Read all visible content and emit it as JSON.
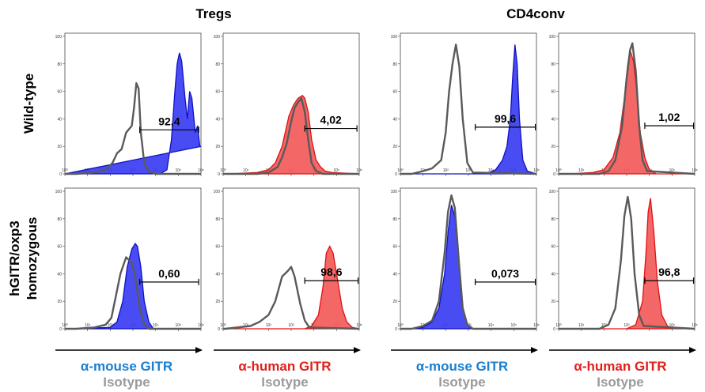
{
  "header": {
    "tregs": "Tregs",
    "cd4conv": "CD4conv"
  },
  "rows": [
    "Wild-type",
    "hGITR/oxp3 homozygous"
  ],
  "row_lines": [
    [
      "Wild-type"
    ],
    [
      "hGITR/oxp3",
      "homozygous"
    ]
  ],
  "y_ticks": [
    "0",
    "20",
    "40",
    "60",
    "80",
    "100"
  ],
  "x_ticks": [
    "10⁰",
    "10¹",
    "10²",
    "10³",
    "10⁴",
    "10⁵",
    "10⁶"
  ],
  "column_labels": [
    {
      "antibody": "α-mouse GITR",
      "isotype": "Isotype",
      "color": "#1a7fd0"
    },
    {
      "antibody": "α-human GITR",
      "isotype": "Isotype",
      "color": "#e0201c"
    },
    {
      "antibody": "α-mouse GITR",
      "isotype": "Isotype",
      "color": "#1a7fd0"
    },
    {
      "antibody": "α-human GITR",
      "isotype": "Isotype",
      "color": "#e0201c"
    }
  ],
  "colors": {
    "blue_fill": "#3a3df2",
    "red_fill": "#f25a5a",
    "isotype": "#5a5a5a",
    "iso_text": "#9a9a9a"
  },
  "chart_data": [
    {
      "type": "area",
      "population": "Tregs",
      "row": "Wild-type",
      "stain": "blue",
      "xlim_log10": [
        0,
        6
      ],
      "ylim": [
        0,
        100
      ],
      "gate": {
        "label": "92,4",
        "x_from": 3.3,
        "x_to": 5.9,
        "y": 32
      },
      "stained": [
        [
          0,
          0
        ],
        [
          0.5,
          0
        ],
        [
          4.2,
          0
        ],
        [
          4.5,
          3
        ],
        [
          4.7,
          25
        ],
        [
          4.85,
          60
        ],
        [
          4.95,
          80
        ],
        [
          5.05,
          88
        ],
        [
          5.15,
          82
        ],
        [
          5.3,
          55
        ],
        [
          5.4,
          40
        ],
        [
          5.5,
          60
        ],
        [
          5.6,
          55
        ],
        [
          5.75,
          30
        ],
        [
          5.85,
          35
        ],
        [
          5.95,
          20
        ],
        [
          6,
          20
        ]
      ],
      "isotype": [
        [
          0,
          0
        ],
        [
          0.5,
          0
        ],
        [
          1.3,
          1
        ],
        [
          1.8,
          3
        ],
        [
          2.1,
          8
        ],
        [
          2.3,
          15
        ],
        [
          2.5,
          18
        ],
        [
          2.7,
          30
        ],
        [
          2.95,
          35
        ],
        [
          3.05,
          48
        ],
        [
          3.15,
          66
        ],
        [
          3.25,
          62
        ],
        [
          3.35,
          30
        ],
        [
          3.5,
          8
        ],
        [
          3.7,
          2
        ],
        [
          4.0,
          0
        ],
        [
          6,
          0
        ]
      ]
    },
    {
      "type": "area",
      "population": "Tregs",
      "row": "Wild-type",
      "stain": "red",
      "xlim_log10": [
        0,
        6
      ],
      "ylim": [
        0,
        100
      ],
      "gate": {
        "label": "4,02",
        "x_from": 3.6,
        "x_to": 5.9,
        "y": 33
      },
      "stained": [
        [
          0,
          0
        ],
        [
          0.1,
          0
        ],
        [
          0.3,
          0
        ],
        [
          1.5,
          1
        ],
        [
          2.0,
          3
        ],
        [
          2.3,
          8
        ],
        [
          2.6,
          20
        ],
        [
          2.9,
          42
        ],
        [
          3.1,
          50
        ],
        [
          3.3,
          55
        ],
        [
          3.5,
          57
        ],
        [
          3.6,
          55
        ],
        [
          3.75,
          45
        ],
        [
          3.9,
          25
        ],
        [
          4.1,
          10
        ],
        [
          4.3,
          5
        ],
        [
          4.5,
          2
        ],
        [
          4.8,
          1
        ],
        [
          6,
          0
        ]
      ],
      "isotype": [
        [
          0,
          0
        ],
        [
          1.5,
          0
        ],
        [
          2.0,
          1
        ],
        [
          2.4,
          5
        ],
        [
          2.6,
          12
        ],
        [
          2.8,
          22
        ],
        [
          3.0,
          38
        ],
        [
          3.15,
          48
        ],
        [
          3.3,
          52
        ],
        [
          3.45,
          55
        ],
        [
          3.6,
          45
        ],
        [
          3.75,
          25
        ],
        [
          3.9,
          8
        ],
        [
          4.1,
          2
        ],
        [
          4.4,
          0
        ],
        [
          6,
          0
        ]
      ]
    },
    {
      "type": "area",
      "population": "CD4conv",
      "row": "Wild-type",
      "stain": "blue",
      "xlim_log10": [
        0,
        6
      ],
      "ylim": [
        0,
        100
      ],
      "gate": {
        "label": "99,6",
        "x_from": 3.3,
        "x_to": 5.95,
        "y": 34
      },
      "stained": [
        [
          0,
          0
        ],
        [
          3.8,
          0
        ],
        [
          4.2,
          3
        ],
        [
          4.5,
          10
        ],
        [
          4.7,
          20
        ],
        [
          4.85,
          40
        ],
        [
          4.95,
          70
        ],
        [
          5.05,
          94
        ],
        [
          5.15,
          80
        ],
        [
          5.25,
          40
        ],
        [
          5.4,
          10
        ],
        [
          5.6,
          2
        ],
        [
          6,
          0
        ]
      ],
      "isotype": [
        [
          0,
          0
        ],
        [
          0.5,
          0
        ],
        [
          1.0,
          2
        ],
        [
          1.4,
          4
        ],
        [
          1.8,
          10
        ],
        [
          2.0,
          30
        ],
        [
          2.15,
          60
        ],
        [
          2.3,
          80
        ],
        [
          2.45,
          94
        ],
        [
          2.6,
          78
        ],
        [
          2.75,
          40
        ],
        [
          2.95,
          8
        ],
        [
          3.2,
          1
        ],
        [
          6,
          0
        ]
      ]
    },
    {
      "type": "area",
      "population": "CD4conv",
      "row": "Wild-type",
      "stain": "red",
      "xlim_log10": [
        0,
        6
      ],
      "ylim": [
        0,
        100
      ],
      "gate": {
        "label": "1,02",
        "x_from": 3.8,
        "x_to": 5.95,
        "y": 35
      },
      "stained": [
        [
          0,
          0
        ],
        [
          0.5,
          0
        ],
        [
          1.5,
          1
        ],
        [
          2.0,
          3
        ],
        [
          2.4,
          12
        ],
        [
          2.7,
          30
        ],
        [
          2.9,
          55
        ],
        [
          3.05,
          80
        ],
        [
          3.15,
          90
        ],
        [
          3.3,
          82
        ],
        [
          3.45,
          60
        ],
        [
          3.6,
          30
        ],
        [
          3.8,
          12
        ],
        [
          4.0,
          3
        ],
        [
          4.3,
          0
        ],
        [
          6,
          0
        ]
      ],
      "isotype": [
        [
          0,
          0
        ],
        [
          1.8,
          0
        ],
        [
          2.2,
          2
        ],
        [
          2.5,
          10
        ],
        [
          2.8,
          35
        ],
        [
          3.0,
          70
        ],
        [
          3.15,
          90
        ],
        [
          3.25,
          95
        ],
        [
          3.4,
          75
        ],
        [
          3.55,
          35
        ],
        [
          3.7,
          10
        ],
        [
          3.9,
          2
        ],
        [
          6,
          0
        ]
      ]
    },
    {
      "type": "area",
      "population": "Tregs",
      "row": "hGITR/oxp3 homozygous",
      "stain": "blue",
      "xlim_log10": [
        0,
        6
      ],
      "ylim": [
        0,
        100
      ],
      "gate": {
        "label": "0,60",
        "x_from": 3.3,
        "x_to": 5.9,
        "y": 34
      },
      "stained": [
        [
          0,
          0
        ],
        [
          0.1,
          0
        ],
        [
          2.0,
          1
        ],
        [
          2.3,
          5
        ],
        [
          2.55,
          20
        ],
        [
          2.75,
          45
        ],
        [
          2.95,
          58
        ],
        [
          3.1,
          62
        ],
        [
          3.2,
          60
        ],
        [
          3.35,
          45
        ],
        [
          3.5,
          20
        ],
        [
          3.7,
          5
        ],
        [
          3.9,
          0
        ],
        [
          6,
          0
        ]
      ],
      "isotype": [
        [
          0,
          0
        ],
        [
          0.5,
          0
        ],
        [
          1.3,
          1
        ],
        [
          1.8,
          3
        ],
        [
          2.05,
          8
        ],
        [
          2.2,
          20
        ],
        [
          2.45,
          40
        ],
        [
          2.7,
          52
        ],
        [
          2.95,
          48
        ],
        [
          3.1,
          38
        ],
        [
          3.3,
          15
        ],
        [
          3.5,
          3
        ],
        [
          3.7,
          0
        ],
        [
          6,
          0
        ]
      ]
    },
    {
      "type": "area",
      "population": "Tregs",
      "row": "hGITR/oxp3 homozygous",
      "stain": "red",
      "xlim_log10": [
        0,
        6
      ],
      "ylim": [
        0,
        100
      ],
      "gate": {
        "label": "98,6",
        "x_from": 3.6,
        "x_to": 5.95,
        "y": 35
      },
      "stained": [
        [
          0,
          0
        ],
        [
          3.6,
          0
        ],
        [
          3.9,
          2
        ],
        [
          4.2,
          10
        ],
        [
          4.4,
          30
        ],
        [
          4.55,
          55
        ],
        [
          4.7,
          60
        ],
        [
          4.85,
          55
        ],
        [
          5.05,
          35
        ],
        [
          5.25,
          15
        ],
        [
          5.45,
          5
        ],
        [
          5.7,
          1
        ],
        [
          6,
          0
        ]
      ],
      "isotype": [
        [
          0,
          0
        ],
        [
          0.1,
          0
        ],
        [
          1.2,
          2
        ],
        [
          1.6,
          5
        ],
        [
          2.0,
          10
        ],
        [
          2.3,
          20
        ],
        [
          2.6,
          38
        ],
        [
          2.85,
          42
        ],
        [
          3.0,
          45
        ],
        [
          3.15,
          38
        ],
        [
          3.4,
          18
        ],
        [
          3.6,
          6
        ],
        [
          3.8,
          1
        ],
        [
          6,
          0
        ]
      ]
    },
    {
      "type": "area",
      "population": "CD4conv",
      "row": "hGITR/oxp3 homozygous",
      "stain": "blue",
      "xlim_log10": [
        0,
        6
      ],
      "ylim": [
        0,
        100
      ],
      "gate": {
        "label": "0,073",
        "x_from": 3.3,
        "x_to": 5.95,
        "y": 34
      },
      "stained": [
        [
          0,
          0
        ],
        [
          0.5,
          0
        ],
        [
          1.0,
          1
        ],
        [
          1.4,
          5
        ],
        [
          1.7,
          15
        ],
        [
          1.95,
          40
        ],
        [
          2.1,
          70
        ],
        [
          2.25,
          90
        ],
        [
          2.4,
          82
        ],
        [
          2.55,
          55
        ],
        [
          2.7,
          20
        ],
        [
          2.9,
          5
        ],
        [
          3.1,
          0
        ],
        [
          6,
          0
        ]
      ],
      "isotype": [
        [
          0,
          0
        ],
        [
          0.5,
          0
        ],
        [
          1.0,
          2
        ],
        [
          1.4,
          6
        ],
        [
          1.7,
          20
        ],
        [
          1.95,
          55
        ],
        [
          2.1,
          85
        ],
        [
          2.25,
          97
        ],
        [
          2.4,
          88
        ],
        [
          2.6,
          45
        ],
        [
          2.75,
          15
        ],
        [
          2.95,
          3
        ],
        [
          3.2,
          0
        ],
        [
          6,
          0
        ]
      ]
    },
    {
      "type": "area",
      "population": "CD4conv",
      "row": "hGITR/oxp3 homozygous",
      "stain": "red",
      "xlim_log10": [
        0,
        6
      ],
      "ylim": [
        0,
        100
      ],
      "gate": {
        "label": "96,8",
        "x_from": 3.8,
        "x_to": 5.95,
        "y": 35
      },
      "stained": [
        [
          0,
          0
        ],
        [
          3.0,
          0
        ],
        [
          3.4,
          3
        ],
        [
          3.7,
          20
        ],
        [
          3.85,
          55
        ],
        [
          3.95,
          85
        ],
        [
          4.05,
          95
        ],
        [
          4.2,
          70
        ],
        [
          4.35,
          35
        ],
        [
          4.55,
          10
        ],
        [
          4.8,
          2
        ],
        [
          5.0,
          0
        ],
        [
          6,
          0
        ]
      ],
      "isotype": [
        [
          0,
          0
        ],
        [
          1.8,
          0
        ],
        [
          2.2,
          3
        ],
        [
          2.5,
          15
        ],
        [
          2.75,
          50
        ],
        [
          2.9,
          82
        ],
        [
          3.05,
          96
        ],
        [
          3.2,
          80
        ],
        [
          3.35,
          40
        ],
        [
          3.55,
          10
        ],
        [
          3.75,
          2
        ],
        [
          6,
          0
        ]
      ]
    }
  ]
}
